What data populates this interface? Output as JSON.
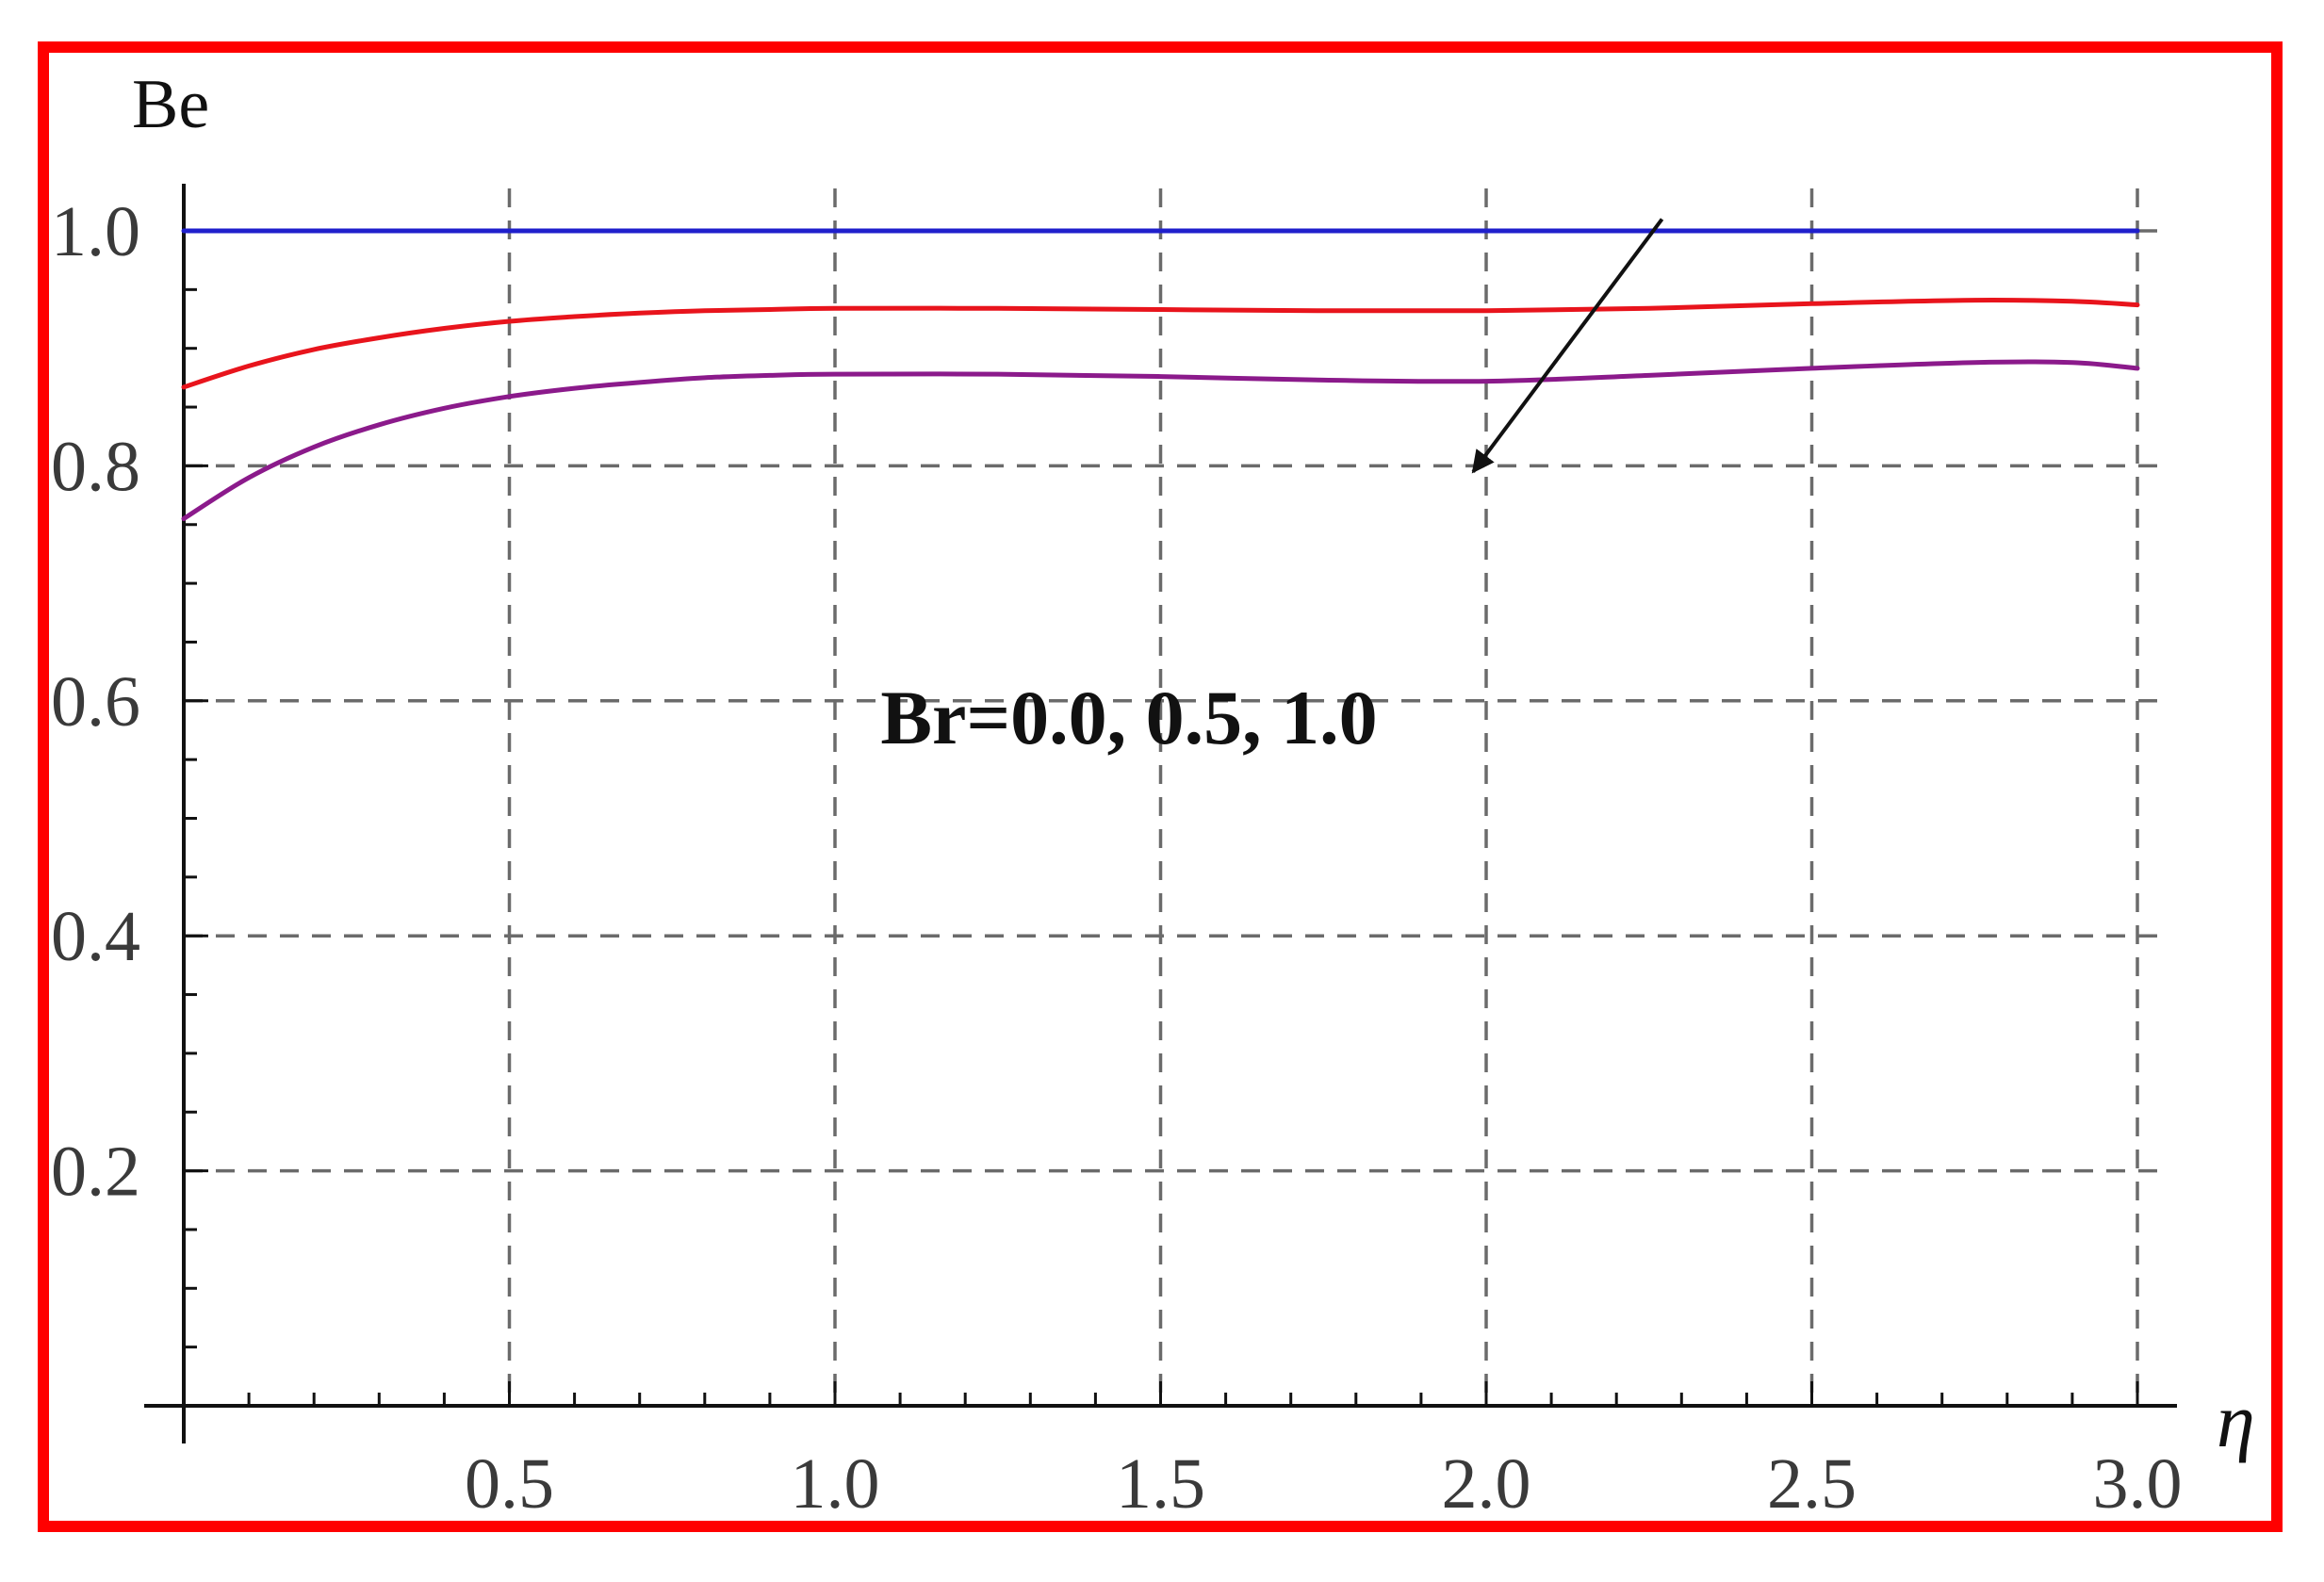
{
  "frame_color": "#ff0000",
  "chart_data": {
    "type": "line",
    "title": "",
    "xlabel": "η",
    "ylabel": "Be",
    "xlim": [
      0,
      3.0
    ],
    "ylim": [
      0,
      1.0
    ],
    "x_ticks": [
      0.5,
      1.0,
      1.5,
      2.0,
      2.5,
      3.0
    ],
    "x_tick_labels": [
      "0.5",
      "1.0",
      "1.5",
      "2.0",
      "2.5",
      "3.0"
    ],
    "y_ticks": [
      0.2,
      0.4,
      0.6,
      0.8,
      1.0
    ],
    "y_tick_labels": [
      "0.2",
      "0.4",
      "0.6",
      "0.8",
      "1.0"
    ],
    "grid": true,
    "grid_style": "dashed",
    "legend": "none",
    "series": [
      {
        "color": "#1f1fcc",
        "x": [
          0,
          0.25,
          0.5,
          0.75,
          1.0,
          1.25,
          1.5,
          1.75,
          2.0,
          2.25,
          2.5,
          2.75,
          3.0
        ],
        "y": [
          1.0,
          1.0,
          1.0,
          1.0,
          1.0,
          1.0,
          1.0,
          1.0,
          1.0,
          1.0,
          1.0,
          1.0,
          1.0
        ]
      },
      {
        "color": "#e8141c",
        "x": [
          0,
          0.1,
          0.2,
          0.3,
          0.4,
          0.5,
          0.6,
          0.7,
          0.8,
          0.9,
          1.0,
          1.25,
          1.5,
          1.75,
          2.0,
          2.25,
          2.5,
          2.75,
          2.9,
          3.0
        ],
        "y": [
          0.867,
          0.885,
          0.899,
          0.909,
          0.917,
          0.923,
          0.927,
          0.93,
          0.932,
          0.933,
          0.934,
          0.934,
          0.933,
          0.932,
          0.932,
          0.934,
          0.938,
          0.941,
          0.94,
          0.937
        ]
      },
      {
        "color": "#8b1a8b",
        "x": [
          0,
          0.1,
          0.2,
          0.3,
          0.4,
          0.5,
          0.6,
          0.7,
          0.8,
          0.9,
          1.0,
          1.25,
          1.5,
          1.75,
          2.0,
          2.25,
          2.5,
          2.75,
          2.9,
          3.0
        ],
        "y": [
          0.755,
          0.79,
          0.816,
          0.835,
          0.849,
          0.859,
          0.866,
          0.871,
          0.875,
          0.877,
          0.878,
          0.878,
          0.876,
          0.873,
          0.872,
          0.877,
          0.883,
          0.888,
          0.888,
          0.883
        ]
      }
    ],
    "annotations": [
      {
        "text": "Br=0.0, 0.5, 1.0",
        "x": 1.07,
        "y": 0.6,
        "arrow_from": [
          2.27,
          1.01
        ],
        "arrow_to": [
          1.98,
          0.795
        ]
      }
    ]
  }
}
